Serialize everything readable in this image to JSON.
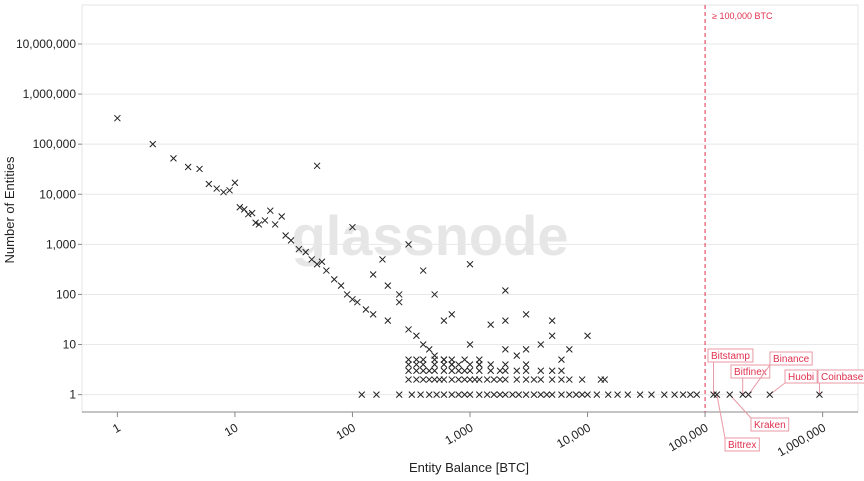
{
  "chart_data": {
    "type": "scatter",
    "watermark": "glassnode",
    "x_label": "Entity Balance [BTC]",
    "y_label": "Number of Entities",
    "log_x": true,
    "log_y": true,
    "grid": true,
    "color": "#222222",
    "xlim": [
      0.5,
      2000000
    ],
    "ylim": [
      0.45,
      60000000
    ],
    "xticks": [
      1,
      10,
      100,
      {
        "value": 1000,
        "label": "1,000"
      },
      {
        "value": 10000,
        "label": "10,000"
      },
      {
        "value": 100000,
        "label": "100,000"
      },
      {
        "value": 1000000,
        "label": "1,000,000"
      }
    ],
    "yticks": [
      1,
      10,
      100,
      {
        "value": 1000,
        "label": "1,000"
      },
      {
        "value": 10000,
        "label": "10,000"
      },
      {
        "value": 100000,
        "label": "100,000"
      },
      {
        "value": 1000000,
        "label": "1,000,000"
      },
      {
        "value": 10000000,
        "label": "10,000,000"
      }
    ],
    "threshold": {
      "value": 100000,
      "label": "≥ 100,000 BTC",
      "color": "#e0304e"
    },
    "series": [
      {
        "x": [
          1,
          2,
          3,
          4,
          5,
          6,
          7,
          8,
          9,
          10,
          11,
          12,
          13,
          14,
          15,
          16,
          18,
          20,
          22,
          25,
          27,
          30,
          35,
          40,
          45,
          50,
          50,
          55,
          60,
          70,
          80,
          90,
          100,
          100,
          110,
          130,
          150,
          150,
          180,
          200,
          200,
          250,
          250,
          300,
          300,
          350,
          400,
          400,
          450,
          500,
          500,
          600,
          600,
          700,
          700,
          1000,
          1000,
          1200,
          1500,
          2000,
          2000,
          2000,
          2500,
          3000,
          3000,
          4000,
          5000,
          5000,
          6000,
          7000,
          10000
        ],
        "values": [
          330000,
          100000,
          52000,
          35000,
          32000,
          16000,
          13000,
          11000,
          12000,
          17000,
          5500,
          5000,
          4000,
          4200,
          2700,
          2500,
          3000,
          4700,
          2500,
          3600,
          1500,
          1200,
          800,
          700,
          500,
          37000,
          400,
          450,
          300,
          200,
          150,
          100,
          2200,
          80,
          70,
          50,
          40,
          250,
          500,
          30,
          150,
          70,
          100,
          20,
          1000,
          15,
          10,
          300,
          8,
          100,
          6,
          5,
          30,
          4,
          40,
          400,
          10,
          4,
          25,
          120,
          8,
          30,
          6,
          40,
          8,
          10,
          30,
          15,
          5,
          8,
          15
        ]
      },
      {
        "x": [
          120,
          160,
          250,
          320,
          380,
          450,
          520,
          600,
          700,
          800,
          900,
          1000,
          1200,
          1400,
          1600,
          1800,
          2000,
          2300,
          2600,
          3000,
          3500,
          4000,
          4500,
          5000,
          6000,
          7000,
          8000,
          9000,
          10000,
          12000,
          15000,
          18000,
          22000,
          28000,
          35000,
          45000,
          55000,
          65000,
          75000,
          85000
        ],
        "values": [
          1,
          1,
          1,
          1,
          1,
          1,
          1,
          1,
          1,
          1,
          1,
          1,
          1,
          1,
          1,
          1,
          1,
          1,
          1,
          1,
          1,
          1,
          1,
          1,
          1,
          1,
          1,
          1,
          1,
          1,
          1,
          1,
          1,
          1,
          1,
          1,
          1,
          1,
          1,
          1
        ]
      },
      {
        "x": [
          300,
          350,
          400,
          450,
          500,
          550,
          600,
          700,
          800,
          900,
          1000,
          1100,
          1200,
          1400,
          1600,
          1800,
          2000,
          2500,
          3000,
          3500,
          4000,
          5000,
          6000,
          7000,
          9000,
          13000,
          14000
        ],
        "values": [
          2,
          2,
          2,
          2,
          2,
          2,
          2,
          2,
          2,
          2,
          2,
          2,
          2,
          2,
          2,
          2,
          2,
          2,
          2,
          2,
          2,
          2,
          2,
          2,
          2,
          2,
          2
        ]
      },
      {
        "x": [
          300,
          350,
          400,
          450,
          500,
          600,
          700,
          800,
          900,
          1000,
          1200,
          1500,
          1800,
          2000,
          2500,
          3000,
          4000,
          5000,
          6000
        ],
        "values": [
          3,
          3,
          3,
          3,
          3,
          3,
          3,
          3,
          3,
          3,
          3,
          3,
          3,
          3,
          3,
          3,
          3,
          3,
          3
        ]
      },
      {
        "x": [
          300,
          350,
          400,
          500,
          600,
          700,
          800,
          1000,
          1200,
          1500,
          2000,
          3000
        ],
        "values": [
          4,
          4,
          4,
          4,
          4,
          4,
          4,
          4,
          4,
          4,
          4,
          4
        ]
      },
      {
        "x": [
          300,
          350,
          400,
          500,
          600,
          700,
          900,
          1200
        ],
        "values": [
          5,
          5,
          5,
          5,
          5,
          5,
          5,
          5
        ]
      }
    ],
    "labeled_points": [
      {
        "label": "Bitstamp",
        "x": 118000,
        "value": 1
      },
      {
        "label": "Bitfinex",
        "x": 209000,
        "value": 1
      },
      {
        "label": "Binance",
        "x": 234000,
        "value": 1
      },
      {
        "label": "Huobi",
        "x": 355000,
        "value": 1
      },
      {
        "label": "Coinbase",
        "x": 940000,
        "value": 1
      },
      {
        "label": "Kraken",
        "x": 162000,
        "value": 1
      },
      {
        "label": "Bittrex",
        "x": 126000,
        "value": 1
      }
    ]
  }
}
